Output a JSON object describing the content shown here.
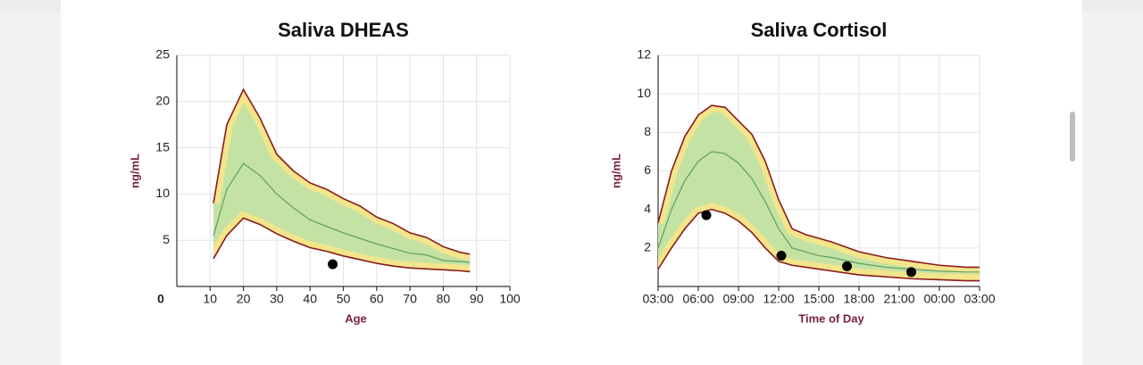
{
  "chart_data": [
    {
      "type": "line",
      "title": "Saliva DHEAS",
      "x_label": "Age",
      "y_label": "ng/mL",
      "x": [
        11,
        15,
        20,
        25,
        30,
        35,
        40,
        45,
        50,
        55,
        60,
        65,
        70,
        75,
        80,
        85,
        88
      ],
      "series": [
        {
          "color": "#8b1a1a",
          "values": [
            9,
            17.5,
            21.3,
            18.2,
            14.3,
            12.5,
            11.2,
            10.5,
            9.5,
            8.7,
            7.5,
            6.8,
            5.8,
            5.3,
            4.3,
            3.7,
            3.5
          ]
        },
        {
          "color": "#5f9f5f",
          "values": [
            5.5,
            10.5,
            13.3,
            12,
            10,
            8.5,
            7.2,
            6.5,
            5.8,
            5.2,
            4.6,
            4.1,
            3.6,
            3.4,
            2.8,
            2.7,
            2.6
          ]
        },
        {
          "color": "#8b1a1a",
          "values": [
            3,
            5.5,
            7.4,
            6.7,
            5.7,
            4.9,
            4.2,
            3.8,
            3.3,
            2.9,
            2.5,
            2.2,
            2,
            1.9,
            1.8,
            1.7,
            1.6
          ]
        }
      ],
      "band_color": "#c3e2a4",
      "band_edge_color": "#f3e58c",
      "points": {
        "color": "#000000",
        "x": [
          46.8
        ],
        "values": [
          2.4
        ]
      },
      "xlim": [
        0,
        100
      ],
      "xticks": [
        10,
        20,
        30,
        40,
        50,
        60,
        70,
        80,
        90,
        100
      ],
      "ylim": [
        0,
        25
      ],
      "yticks": [
        0,
        5,
        10,
        15,
        20,
        25
      ],
      "grid": true
    },
    {
      "type": "line",
      "title": "Saliva Cortisol",
      "x_label": "Time of Day",
      "y_label": "ng/mL",
      "x": [
        3,
        4,
        5,
        6,
        7,
        8,
        9,
        10,
        11,
        12,
        13,
        14,
        15,
        16,
        18,
        20,
        22,
        24,
        26,
        27
      ],
      "series": [
        {
          "color": "#8b1a1a",
          "values": [
            3.3,
            6,
            7.8,
            8.9,
            9.4,
            9.3,
            8.6,
            7.9,
            6.5,
            4.5,
            3,
            2.7,
            2.5,
            2.3,
            1.8,
            1.5,
            1.3,
            1.1,
            1,
            1
          ]
        },
        {
          "color": "#5f9f5f",
          "values": [
            2,
            4,
            5.5,
            6.5,
            7,
            6.9,
            6.4,
            5.6,
            4.4,
            3,
            2,
            1.8,
            1.6,
            1.5,
            1.2,
            1,
            0.9,
            0.8,
            0.75,
            0.75
          ]
        },
        {
          "color": "#8b1a1a",
          "values": [
            0.9,
            2,
            3,
            3.8,
            4,
            3.8,
            3.4,
            2.8,
            2,
            1.3,
            1.1,
            1,
            0.9,
            0.8,
            0.6,
            0.5,
            0.4,
            0.35,
            0.3,
            0.3
          ]
        }
      ],
      "band_color": "#c3e2a4",
      "band_edge_color": "#f3e58c",
      "points": {
        "color": "#000000",
        "x": [
          6.6,
          12.2,
          17.1,
          21.9
        ],
        "values": [
          3.7,
          1.6,
          1.05,
          0.75
        ]
      },
      "xlim": [
        3,
        27
      ],
      "xticks": [
        {
          "value": 3,
          "label": "03:00"
        },
        {
          "value": 6,
          "label": "06:00"
        },
        {
          "value": 9,
          "label": "09:00"
        },
        {
          "value": 12,
          "label": "12:00"
        },
        {
          "value": 15,
          "label": "15:00"
        },
        {
          "value": 18,
          "label": "18:00"
        },
        {
          "value": 21,
          "label": "21:00"
        },
        {
          "value": 24,
          "label": "00:00"
        },
        {
          "value": 27,
          "label": "03:00"
        }
      ],
      "ylim": [
        0,
        12
      ],
      "yticks": [
        2,
        4,
        6,
        8,
        10,
        12
      ],
      "grid": true
    }
  ]
}
